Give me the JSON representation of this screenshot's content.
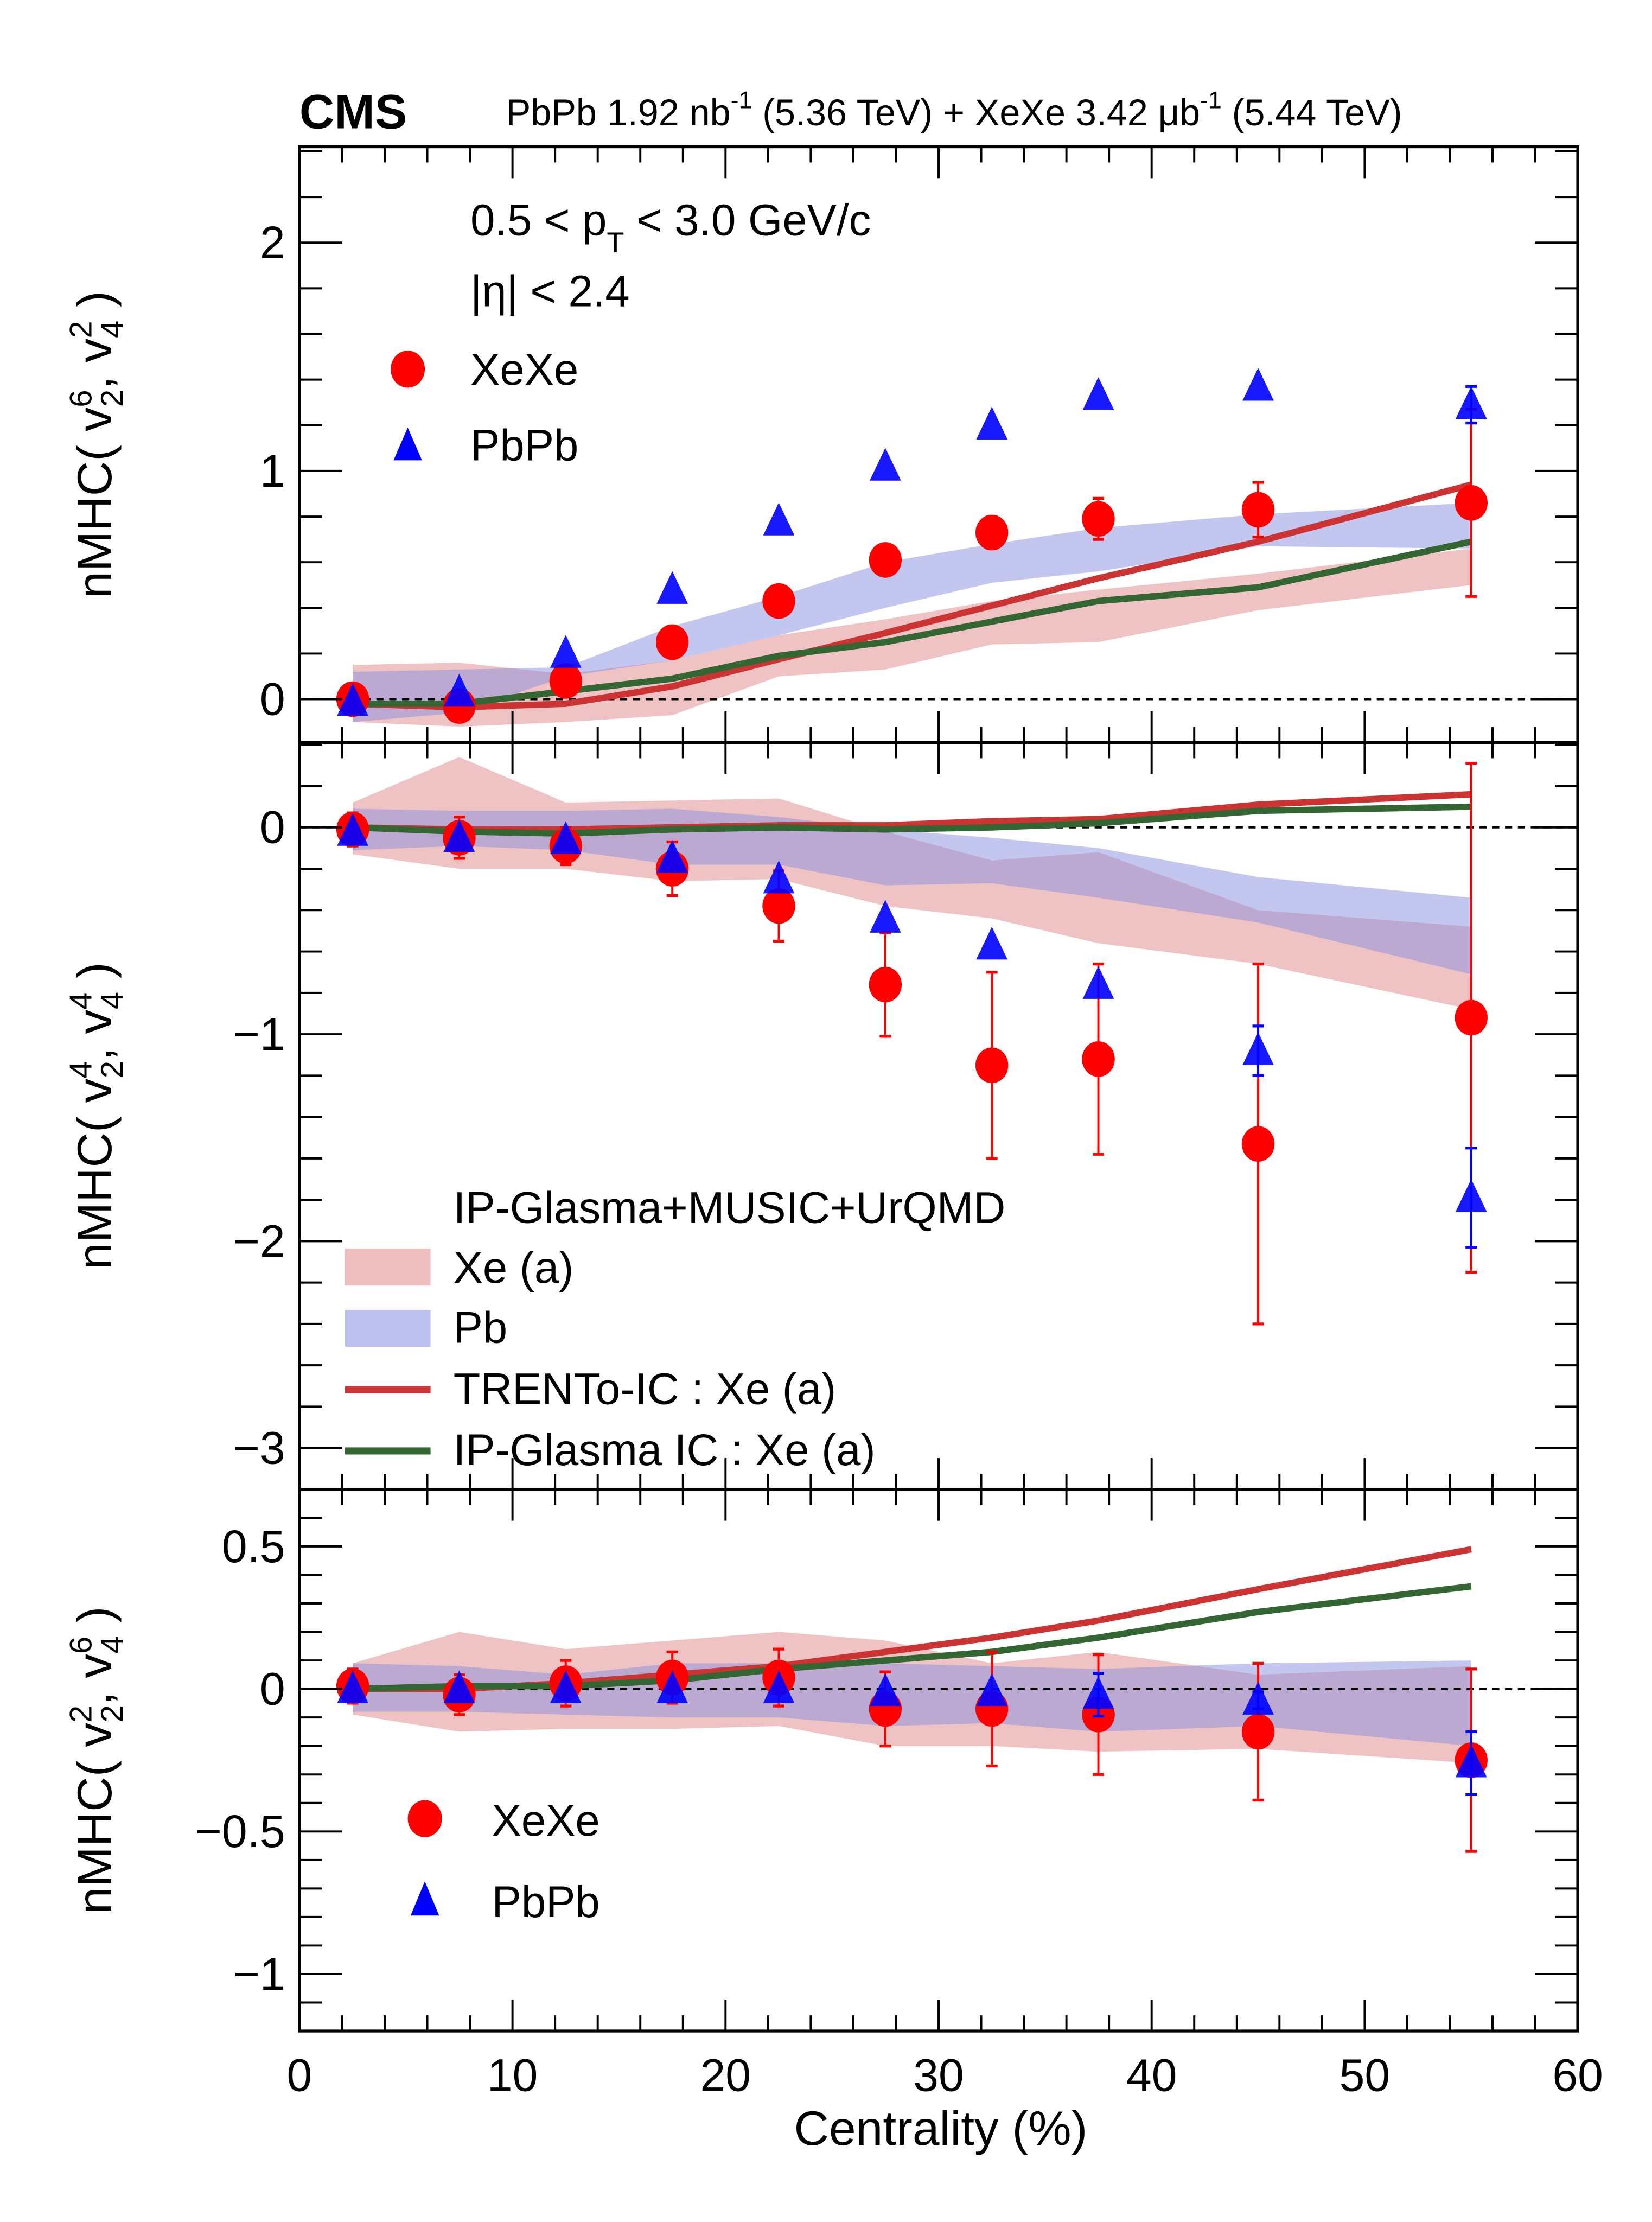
{
  "header": {
    "experiment": "CMS",
    "luminosity_text": "PbPb 1.92 nb",
    "lumi_sup1": "-1",
    "energy1": " (5.36 TeV) + XeXe 3.42 μb",
    "lumi_sup2": "-1",
    "energy2": " (5.44 TeV)"
  },
  "annotations": {
    "pt_range_prefix": "0.5 < p",
    "pt_sub": "T",
    "pt_range_suffix": " < 3.0 GeV/c",
    "eta_range": "|η| < 2.4"
  },
  "legends": {
    "data_top": [
      {
        "label": "XeXe",
        "marker": "circle",
        "color": "#ff0000"
      },
      {
        "label": "PbPb",
        "marker": "triangle",
        "color": "#0000ff"
      }
    ],
    "model_title": "IP-Glasma+MUSIC+UrQMD",
    "model_entries": [
      {
        "label": "Xe (a)",
        "style": "band",
        "color": "#e9a8a8"
      },
      {
        "label": "Pb",
        "style": "band",
        "color": "#aaaee8"
      },
      {
        "label": "TRENTo-IC : Xe (a)",
        "style": "line",
        "color": "#cc3333"
      },
      {
        "label": "IP-Glasma IC : Xe (a)",
        "style": "line",
        "color": "#336633"
      }
    ],
    "data_bottom": [
      {
        "label": "XeXe",
        "marker": "circle",
        "color": "#ff0000"
      },
      {
        "label": "PbPb",
        "marker": "triangle",
        "color": "#0000ff"
      }
    ]
  },
  "chart_data": [
    {
      "type": "scatter",
      "panel": "top",
      "ylabel_main": "nMHC( v",
      "ylabel_parts": {
        "a_sub": "2",
        "a_sup": "6",
        "b_sub": "4",
        "b_sup": "2"
      },
      "xlabel": "Centrality (%)",
      "xlim": [
        0,
        60
      ],
      "ylim": [
        -0.19,
        2.42
      ],
      "yticks": [
        0,
        1,
        2
      ],
      "ytick_labels": [
        "0",
        "1",
        "2"
      ],
      "reference_line": 0,
      "x": [
        2.5,
        7.5,
        12.5,
        17.5,
        22.5,
        27.5,
        32.5,
        37.5,
        45,
        55
      ],
      "series": [
        {
          "name": "XeXe",
          "values": [
            0.0,
            -0.03,
            0.08,
            0.25,
            0.43,
            0.61,
            0.73,
            0.79,
            0.83,
            0.86
          ],
          "errors": [
            0.03,
            0.03,
            0.03,
            0.03,
            0.03,
            0.03,
            0.07,
            0.09,
            0.12,
            0.41
          ]
        },
        {
          "name": "PbPb",
          "values": [
            -0.01,
            0.03,
            0.2,
            0.48,
            0.78,
            1.02,
            1.2,
            1.33,
            1.37,
            1.29
          ],
          "errors": [
            0.01,
            0.01,
            0.01,
            0.01,
            0.01,
            0.01,
            0.01,
            0.01,
            0.01,
            0.08
          ]
        }
      ],
      "bands": [
        {
          "name": "Xe (a)",
          "upper": [
            0.15,
            0.16,
            0.11,
            0.17,
            0.28,
            0.35,
            0.43,
            0.48,
            0.55,
            0.66
          ],
          "lower": [
            -0.1,
            -0.12,
            -0.1,
            -0.07,
            0.1,
            0.13,
            0.24,
            0.25,
            0.39,
            0.5
          ]
        },
        {
          "name": "Pb",
          "upper": [
            0.12,
            0.13,
            0.14,
            0.32,
            0.45,
            0.6,
            0.68,
            0.75,
            0.81,
            0.86
          ],
          "lower": [
            -0.1,
            -0.06,
            0.1,
            0.17,
            0.28,
            0.4,
            0.51,
            0.56,
            0.67,
            0.66
          ]
        }
      ],
      "lines": [
        {
          "name": "TRENTo-IC : Xe (a)",
          "values": [
            -0.02,
            -0.035,
            -0.02,
            0.056,
            0.175,
            0.29,
            0.41,
            0.53,
            0.69,
            0.94
          ]
        },
        {
          "name": "IP-Glasma IC : Xe (a)",
          "values": [
            -0.02,
            -0.02,
            0.035,
            0.09,
            0.19,
            0.25,
            0.34,
            0.43,
            0.49,
            0.69
          ]
        }
      ]
    },
    {
      "type": "scatter",
      "panel": "middle",
      "ylabel_main": "nMHC( v",
      "ylabel_parts": {
        "a_sub": "2",
        "a_sup": "4",
        "b_sub": "4",
        "b_sup": "4"
      },
      "xlim": [
        0,
        60
      ],
      "ylim": [
        -3.2,
        0.41
      ],
      "yticks": [
        0,
        -1,
        -2,
        -3
      ],
      "ytick_labels": [
        "0",
        "−1",
        "−2",
        "−3"
      ],
      "reference_line": 0,
      "x": [
        2.5,
        7.5,
        12.5,
        17.5,
        22.5,
        27.5,
        32.5,
        37.5,
        45,
        55
      ],
      "series": [
        {
          "name": "XeXe",
          "values": [
            -0.01,
            -0.05,
            -0.09,
            -0.2,
            -0.38,
            -0.76,
            -1.15,
            -1.12,
            -1.53,
            -0.92
          ],
          "errors": [
            0.08,
            0.1,
            0.09,
            0.13,
            0.17,
            0.25,
            0.45,
            0.46,
            0.87,
            1.23
          ]
        },
        {
          "name": "PbPb",
          "values": [
            -0.02,
            -0.05,
            -0.06,
            -0.15,
            -0.25,
            -0.44,
            -0.57,
            -0.76,
            -1.08,
            -1.79
          ],
          "errors": [
            0.01,
            0.01,
            0.01,
            0.01,
            0.01,
            0.01,
            0.01,
            0.01,
            0.12,
            0.24
          ]
        }
      ],
      "bands": [
        {
          "name": "Xe (a)",
          "upper": [
            0.12,
            0.34,
            0.12,
            0.13,
            0.14,
            -0.02,
            -0.16,
            -0.12,
            -0.4,
            -0.48
          ],
          "lower": [
            -0.13,
            -0.2,
            -0.2,
            -0.26,
            -0.25,
            -0.38,
            -0.44,
            -0.56,
            -0.66,
            -0.88
          ]
        },
        {
          "name": "Pb",
          "upper": [
            0.09,
            0.08,
            0.08,
            0.09,
            0.05,
            -0.01,
            -0.05,
            -0.1,
            -0.24,
            -0.34
          ],
          "lower": [
            -0.11,
            -0.09,
            -0.11,
            -0.18,
            -0.18,
            -0.28,
            -0.27,
            -0.34,
            -0.46,
            -0.71
          ]
        }
      ],
      "lines": [
        {
          "name": "TRENTo-IC : Xe (a)",
          "values": [
            0.0,
            -0.01,
            -0.01,
            0.0,
            0.01,
            0.01,
            0.03,
            0.04,
            0.11,
            0.16
          ]
        },
        {
          "name": "IP-Glasma IC : Xe (a)",
          "values": [
            0.0,
            -0.02,
            -0.03,
            -0.01,
            0.0,
            -0.01,
            0.0,
            0.02,
            0.08,
            0.1
          ]
        }
      ]
    },
    {
      "type": "scatter",
      "panel": "bottom",
      "ylabel_main": "nMHC( v",
      "ylabel_parts": {
        "a_sub": "2",
        "a_sup": "2",
        "b_sub": "4",
        "b_sup": "6"
      },
      "xlim": [
        0,
        60
      ],
      "ylim": [
        -1.2,
        0.7
      ],
      "yticks": [
        0.5,
        0,
        -0.5,
        -1
      ],
      "ytick_labels": [
        "0.5",
        "0",
        "−0.5",
        "−1"
      ],
      "xticks": [
        0,
        10,
        20,
        30,
        40,
        50,
        60
      ],
      "xtick_labels": [
        "0",
        "10",
        "20",
        "30",
        "40",
        "50",
        "60"
      ],
      "reference_line": 0,
      "x": [
        2.5,
        7.5,
        12.5,
        17.5,
        22.5,
        27.5,
        32.5,
        37.5,
        45,
        55
      ],
      "series": [
        {
          "name": "XeXe",
          "values": [
            0.01,
            -0.02,
            0.02,
            0.04,
            0.04,
            -0.07,
            -0.07,
            -0.09,
            -0.15,
            -0.25
          ],
          "errors": [
            0.06,
            0.07,
            0.08,
            0.09,
            0.1,
            0.13,
            0.2,
            0.21,
            0.24,
            0.32
          ]
        },
        {
          "name": "PbPb",
          "values": [
            0.0,
            0.0,
            0.0,
            0.0,
            0.0,
            -0.01,
            -0.01,
            -0.02,
            -0.04,
            -0.26
          ],
          "errors": [
            0.01,
            0.01,
            0.01,
            0.01,
            0.01,
            0.01,
            0.01,
            0.075,
            0.03,
            0.11
          ]
        }
      ],
      "bands": [
        {
          "name": "Xe (a)",
          "upper": [
            0.09,
            0.2,
            0.14,
            0.17,
            0.2,
            0.17,
            0.09,
            0.13,
            0.05,
            0.08
          ],
          "lower": [
            -0.09,
            -0.15,
            -0.14,
            -0.14,
            -0.13,
            -0.2,
            -0.2,
            -0.22,
            -0.21,
            -0.26
          ]
        },
        {
          "name": "Pb",
          "upper": [
            0.09,
            0.08,
            0.05,
            0.09,
            0.09,
            0.09,
            0.08,
            0.07,
            0.09,
            0.1
          ],
          "lower": [
            -0.08,
            -0.08,
            -0.09,
            -0.1,
            -0.1,
            -0.13,
            -0.12,
            -0.15,
            -0.13,
            -0.2
          ]
        }
      ],
      "lines": [
        {
          "name": "TRENTo-IC : Xe (a)",
          "values": [
            0.0,
            0.0,
            0.02,
            0.05,
            0.08,
            0.13,
            0.18,
            0.24,
            0.35,
            0.49
          ]
        },
        {
          "name": "IP-Glasma IC : Xe (a)",
          "values": [
            0.0,
            0.01,
            0.01,
            0.03,
            0.07,
            0.1,
            0.13,
            0.18,
            0.27,
            0.36
          ]
        }
      ]
    }
  ]
}
